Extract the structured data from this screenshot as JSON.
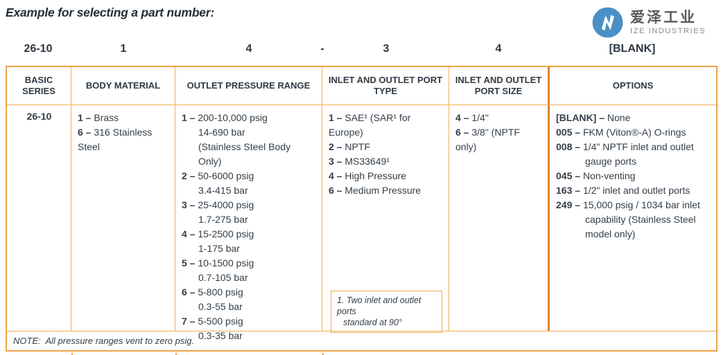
{
  "title": "Example for selecting a part number:",
  "logo": {
    "symbol": "N",
    "name_cn": "爱泽工业",
    "name_en": "IZE INDUSTRIES",
    "circle_color": "#4a90c6"
  },
  "part_number": {
    "segments": [
      "26-10",
      "1",
      "4",
      "-",
      "3",
      "4",
      "[BLANK]"
    ]
  },
  "table": {
    "separator": " – ",
    "headers": [
      "BASIC SERIES",
      "BODY MATERIAL",
      "OUTLET PRESSURE RANGE",
      "INLET AND OUTLET PORT TYPE",
      "INLET AND OUTLET PORT SIZE",
      "OPTIONS"
    ],
    "basic_series": "26-10",
    "body_material": [
      {
        "code": "1",
        "text": "Brass"
      },
      {
        "code": "6",
        "text": "316 Stainless Steel"
      }
    ],
    "pressure_range": [
      {
        "code": "1",
        "text": "200-10,000 psig",
        "sub": [
          "14-690 bar",
          "(Stainless Steel Body Only)"
        ]
      },
      {
        "code": "2",
        "text": "50-6000 psig",
        "sub": [
          "3.4-415 bar"
        ]
      },
      {
        "code": "3",
        "text": "25-4000 psig",
        "sub": [
          "1.7-275 bar"
        ]
      },
      {
        "code": "4",
        "text": "15-2500 psig",
        "sub": [
          "1-175 bar"
        ]
      },
      {
        "code": "5",
        "text": "10-1500 psig",
        "sub": [
          "0.7-105 bar"
        ]
      },
      {
        "code": "6",
        "text": "5-800 psig",
        "sub": [
          "0.3-55 bar"
        ]
      },
      {
        "code": "7",
        "text": "5-500 psig",
        "sub": [
          "0.3-35 bar"
        ]
      }
    ],
    "port_type": [
      {
        "code": "1",
        "text": "SAE¹ (SAR¹ for Europe)"
      },
      {
        "code": "2",
        "text": "NPTF"
      },
      {
        "code": "3",
        "text": "MS33649¹"
      },
      {
        "code": "4",
        "text": "High Pressure"
      },
      {
        "code": "6",
        "text": "Medium Pressure"
      }
    ],
    "port_type_footnote": {
      "line1": "1. Two inlet and outlet ports",
      "line2": "standard at 90°"
    },
    "port_size": [
      {
        "code": "4",
        "text": "1/4\""
      },
      {
        "code": "6",
        "text": "3/8\" (NPTF only)"
      }
    ],
    "options": [
      {
        "code": "[BLANK]",
        "text": "None"
      },
      {
        "code": "005",
        "text": "FKM (Viton®-A) O-rings"
      },
      {
        "code": "008",
        "text": "1/4\" NPTF inlet and outlet",
        "sub": [
          "gauge ports"
        ]
      },
      {
        "code": "045",
        "text": "Non-venting"
      },
      {
        "code": "163",
        "text": "1/2\" inlet and outlet ports"
      },
      {
        "code": "249",
        "text": "15,000 psig / 1034 bar inlet",
        "sub": [
          "capability (Stainless Steel",
          "model only)"
        ]
      }
    ],
    "note": "NOTE:  All pressure ranges vent to zero psig."
  },
  "colors": {
    "border_light": "#f6ae53",
    "border_outer": "#f0a246",
    "border_heavy": "#e1832e",
    "text": "#333e48",
    "logo_blue": "#4a90c6"
  }
}
